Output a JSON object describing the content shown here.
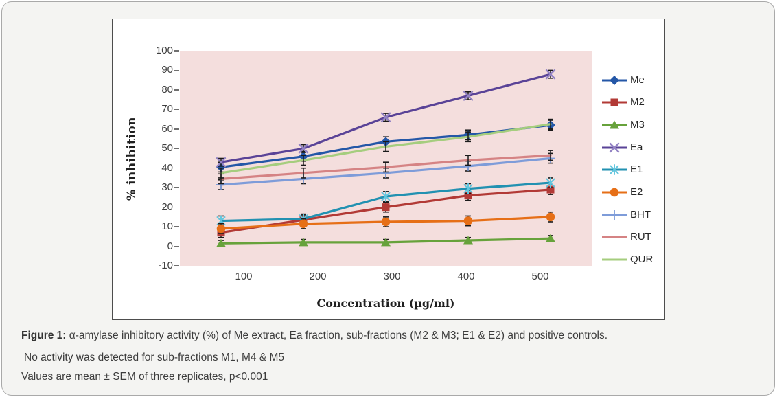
{
  "figure": {
    "caption1_prefix": "Figure 1:",
    "caption1_rest": " α-amylase inhibitory activity (%) of Me extract, Ea fraction, sub-fractions (M2 & M3; E1 & E2) and positive controls.",
    "caption2": "No activity was detected for sub-fractions M1, M4 & M5",
    "caption3": "Values are mean ± SEM of three replicates, p<0.001"
  },
  "chart_data": {
    "type": "line",
    "title": "",
    "xlabel": "Concentration (µg/ml)",
    "ylabel": "% inhibition",
    "categories": [
      100,
      200,
      300,
      400,
      500
    ],
    "ylim": [
      -10,
      100
    ],
    "ytick_step": 10,
    "grid": false,
    "legend_position": "right",
    "plot_bg": "#F4DEDD",
    "error_bar_color": "#1a1a1a",
    "error_bars": "± SEM, approx ±2.5 at each point",
    "series": [
      {
        "name": "Me",
        "color": "#2457A7",
        "marker": "diamond",
        "marker_color": "#2457A7",
        "values": [
          40.5,
          46,
          53.5,
          57,
          62
        ],
        "sem": 2.5
      },
      {
        "name": "M2",
        "color": "#B23A36",
        "marker": "square",
        "marker_color": "#B23A36",
        "values": [
          7,
          13.5,
          20,
          26,
          29
        ],
        "sem": 2.5
      },
      {
        "name": "M3",
        "color": "#67A23B",
        "marker": "triangle",
        "marker_color": "#67A23B",
        "values": [
          1.5,
          2,
          2,
          3,
          4
        ],
        "sem": 1.5
      },
      {
        "name": "Ea",
        "color": "#5A4397",
        "marker": "x",
        "marker_color": "#9383C4",
        "values": [
          43,
          50,
          66,
          77,
          88
        ],
        "sem": 2
      },
      {
        "name": "E1",
        "color": "#2291B1",
        "marker": "asterisk",
        "marker_color": "#63C6DE",
        "values": [
          13,
          14,
          25.5,
          29.5,
          32.5
        ],
        "sem": 2.5
      },
      {
        "name": "E2",
        "color": "#E66F17",
        "marker": "circle",
        "marker_color": "#E66F17",
        "values": [
          9,
          11.5,
          12.5,
          13,
          15
        ],
        "sem": 2.5
      },
      {
        "name": "BHT",
        "color": "#7E9CD9",
        "marker": "plus",
        "marker_color": "#7E9CD9",
        "values": [
          31.5,
          34.5,
          37.5,
          41,
          45
        ],
        "sem": 2.5
      },
      {
        "name": "RUT",
        "color": "#D58384",
        "marker": "none",
        "marker_color": "#D58384",
        "values": [
          34.5,
          37.5,
          40.5,
          44,
          46.5
        ],
        "sem": 2.5
      },
      {
        "name": "QUR",
        "color": "#A5CD7E",
        "marker": "none",
        "marker_color": "#A5CD7E",
        "values": [
          37.5,
          44,
          51,
          56,
          62.5
        ],
        "sem": 2.5
      }
    ]
  }
}
